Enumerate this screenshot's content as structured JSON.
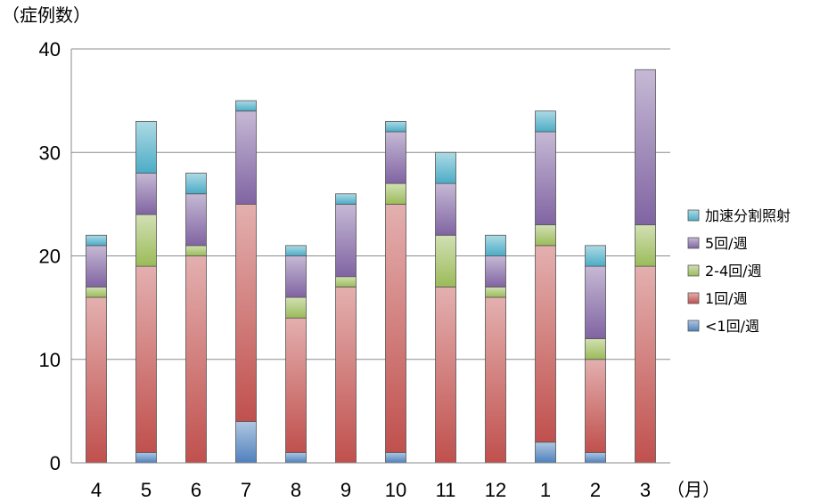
{
  "chart_data": {
    "type": "bar",
    "stacked": true,
    "ylabel": "（症例数）",
    "xlabel": "（月）",
    "ylim": [
      0,
      40
    ],
    "yticks": [
      0,
      10,
      20,
      30,
      40
    ],
    "grid": true,
    "legend_position": "right",
    "categories": [
      "4",
      "5",
      "6",
      "7",
      "8",
      "9",
      "10",
      "11",
      "12",
      "1",
      "2",
      "3"
    ],
    "series": [
      {
        "name": "<1回/週",
        "color": "#4f81bd",
        "values": [
          0,
          1,
          0,
          4,
          1,
          0,
          1,
          0,
          0,
          2,
          1,
          0
        ]
      },
      {
        "name": "1回/週",
        "color": "#c0504d",
        "values": [
          16,
          18,
          20,
          21,
          13,
          17,
          24,
          17,
          16,
          19,
          9,
          19
        ]
      },
      {
        "name": "2-4回/週",
        "color": "#9bbb59",
        "values": [
          1,
          5,
          1,
          0,
          2,
          1,
          2,
          5,
          1,
          2,
          2,
          4
        ]
      },
      {
        "name": "5回/週",
        "color": "#8064a2",
        "values": [
          4,
          4,
          5,
          9,
          4,
          7,
          5,
          5,
          3,
          9,
          7,
          15
        ]
      },
      {
        "name": "加速分割照射",
        "color": "#4bacc6",
        "values": [
          1,
          5,
          2,
          1,
          1,
          1,
          1,
          3,
          2,
          2,
          2,
          0
        ]
      }
    ]
  }
}
